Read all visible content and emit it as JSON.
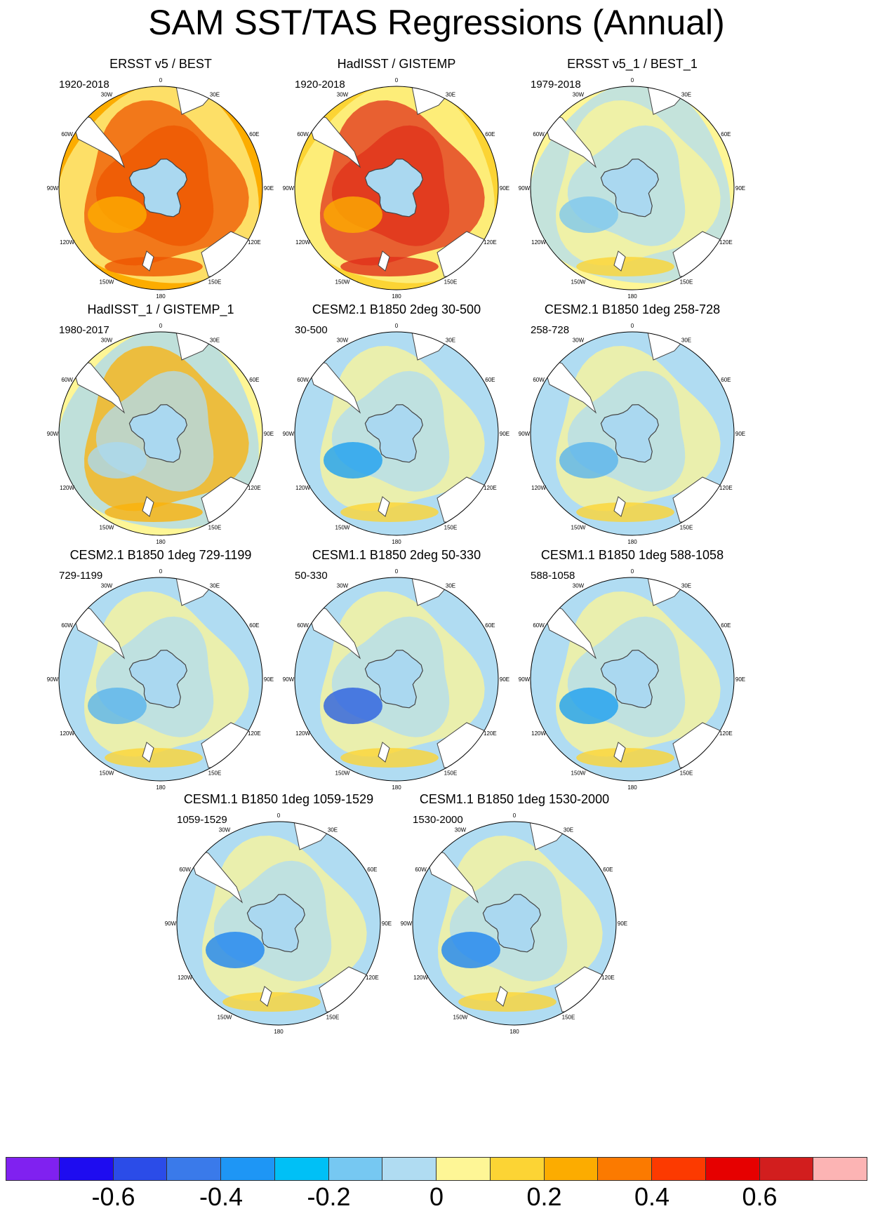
{
  "title": "SAM SST/TAS Regressions (Annual)",
  "lon_labels": [
    "0",
    "30E",
    "60E",
    "90E",
    "120E",
    "150E",
    "180",
    "150W",
    "120W",
    "90W",
    "60W",
    "30W"
  ],
  "panels": [
    {
      "title": "ERSST v5 / BEST",
      "period": "1920-2018",
      "level": 0.28,
      "ice": "#aad8f0",
      "hot": "#ee5500",
      "cool": "#fef08a"
    },
    {
      "title": "HadISST / GISTEMP",
      "period": "1920-2018",
      "level": 0.16,
      "ice": "#aad8f0",
      "hot": "#e0301a",
      "cool": "#fef58f"
    },
    {
      "title": "ERSST v5_1 / BEST_1",
      "period": "1979-2018",
      "level": -0.02,
      "ice": "#aad8f0",
      "hot": "#fba800",
      "cool": "#7ec8ee"
    },
    {
      "title": "HadISST_1 / GISTEMP_1",
      "period": "1980-2017",
      "level": 0.04,
      "ice": "#aad8f0",
      "hot": "#fbb20a",
      "cool": "#aad8f0"
    },
    {
      "title": "CESM2.1 B1850 2deg 30-500",
      "period": "30-500",
      "level": -0.1,
      "ice": "#aad8f0",
      "hot": "#fba800",
      "cool": "#1ea0f0"
    },
    {
      "title": "CESM2.1 B1850 1deg 258-728",
      "period": "258-728",
      "level": -0.06,
      "ice": "#aad8f0",
      "hot": "#fcd23a",
      "cool": "#5ab4ec"
    },
    {
      "title": "CESM2.1 B1850 1deg 729-1199",
      "period": "729-1199",
      "level": -0.06,
      "ice": "#aad8f0",
      "hot": "#fcd23a",
      "cool": "#5ab4ec"
    },
    {
      "title": "CESM1.1 B1850 2deg 50-330",
      "period": "50-330",
      "level": -0.14,
      "ice": "#aad8f0",
      "hot": "#fba800",
      "cool": "#2b5fe0"
    },
    {
      "title": "CESM1.1 B1850 1deg 588-1058",
      "period": "588-1058",
      "level": -0.08,
      "ice": "#aad8f0",
      "hot": "#fcd23a",
      "cool": "#1ea0f0"
    },
    {
      "title": "CESM1.1 B1850 1deg 1059-1529",
      "period": "1059-1529",
      "level": -0.1,
      "ice": "#aad8f0",
      "hot": "#fcd23a",
      "cool": "#1e84f0"
    },
    {
      "title": "CESM1.1 B1850 1deg 1530-2000",
      "period": "1530-2000",
      "level": -0.1,
      "ice": "#aad8f0",
      "hot": "#fcd23a",
      "cool": "#1e84f0"
    }
  ],
  "colorbar": {
    "colors": [
      "#8021f0",
      "#1e0cf0",
      "#2b4ce8",
      "#3a7aea",
      "#1e96f5",
      "#00c0f6",
      "#76c8f2",
      "#b0dcf2",
      "#fef696",
      "#fcd434",
      "#fcac00",
      "#fb7a00",
      "#fc3a00",
      "#e60000",
      "#d21e1e",
      "#fcb4b4"
    ],
    "tick_labels": [
      "-0.6",
      "-0.4",
      "-0.2",
      "0",
      "0.2",
      "0.4",
      "0.6"
    ]
  }
}
